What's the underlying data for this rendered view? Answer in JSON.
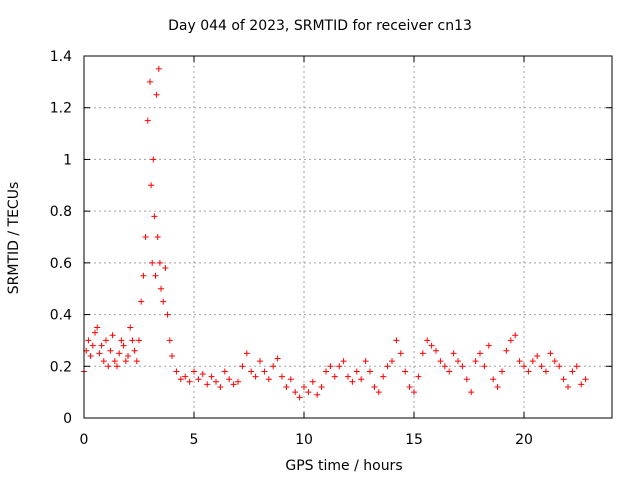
{
  "chart_data": {
    "type": "scatter",
    "title": "Day 044 of 2023, SRMTID for receiver cn13",
    "xlabel": "GPS time / hours",
    "ylabel": "SRMTID / TECUs",
    "xlim": [
      0,
      24
    ],
    "ylim": [
      0,
      1.4
    ],
    "xticks": [
      "0",
      "5",
      "10",
      "15",
      "20"
    ],
    "yticks": [
      "0",
      "0.2",
      "0.4",
      "0.6",
      "0.8",
      "1",
      "1.2",
      "1.4"
    ],
    "grid": true,
    "marker": "+",
    "color": "#ff0000",
    "series": [
      {
        "name": "SRMTID",
        "x": [
          0.0,
          0.1,
          0.2,
          0.3,
          0.4,
          0.5,
          0.6,
          0.7,
          0.8,
          0.9,
          1.0,
          1.1,
          1.2,
          1.3,
          1.4,
          1.5,
          1.6,
          1.7,
          1.8,
          1.9,
          2.0,
          2.1,
          2.2,
          2.3,
          2.4,
          2.5,
          2.6,
          2.7,
          2.8,
          2.9,
          3.0,
          3.05,
          3.1,
          3.15,
          3.2,
          3.25,
          3.3,
          3.35,
          3.4,
          3.45,
          3.5,
          3.6,
          3.7,
          3.8,
          3.9,
          4.0,
          4.2,
          4.4,
          4.6,
          4.8,
          5.0,
          5.2,
          5.4,
          5.6,
          5.8,
          6.0,
          6.2,
          6.4,
          6.6,
          6.8,
          7.0,
          7.2,
          7.4,
          7.6,
          7.8,
          8.0,
          8.2,
          8.4,
          8.6,
          8.8,
          9.0,
          9.2,
          9.4,
          9.6,
          9.8,
          10.0,
          10.2,
          10.4,
          10.6,
          10.8,
          11.0,
          11.2,
          11.4,
          11.6,
          11.8,
          12.0,
          12.2,
          12.4,
          12.6,
          12.8,
          13.0,
          13.2,
          13.4,
          13.6,
          13.8,
          14.0,
          14.2,
          14.4,
          14.6,
          14.8,
          15.0,
          15.2,
          15.4,
          15.6,
          15.8,
          16.0,
          16.2,
          16.4,
          16.6,
          16.8,
          17.0,
          17.2,
          17.4,
          17.6,
          17.8,
          18.0,
          18.2,
          18.4,
          18.6,
          18.8,
          19.0,
          19.2,
          19.4,
          19.6,
          19.8,
          20.0,
          20.2,
          20.4,
          20.6,
          20.8,
          21.0,
          21.2,
          21.4,
          21.6,
          21.8,
          22.0,
          22.2,
          22.4,
          22.6,
          22.8
        ],
        "y": [
          0.18,
          0.26,
          0.3,
          0.24,
          0.28,
          0.33,
          0.35,
          0.25,
          0.28,
          0.22,
          0.3,
          0.2,
          0.26,
          0.32,
          0.22,
          0.2,
          0.25,
          0.3,
          0.28,
          0.22,
          0.24,
          0.35,
          0.3,
          0.26,
          0.22,
          0.3,
          0.45,
          0.55,
          0.7,
          1.15,
          1.3,
          0.9,
          0.6,
          1.0,
          0.78,
          0.55,
          1.25,
          0.7,
          1.35,
          0.6,
          0.5,
          0.45,
          0.58,
          0.4,
          0.3,
          0.24,
          0.18,
          0.15,
          0.16,
          0.14,
          0.18,
          0.15,
          0.17,
          0.13,
          0.16,
          0.14,
          0.12,
          0.18,
          0.15,
          0.13,
          0.14,
          0.2,
          0.25,
          0.18,
          0.16,
          0.22,
          0.18,
          0.15,
          0.2,
          0.23,
          0.16,
          0.12,
          0.15,
          0.1,
          0.08,
          0.12,
          0.1,
          0.14,
          0.09,
          0.12,
          0.18,
          0.2,
          0.16,
          0.2,
          0.22,
          0.16,
          0.14,
          0.18,
          0.15,
          0.22,
          0.18,
          0.12,
          0.1,
          0.16,
          0.2,
          0.22,
          0.3,
          0.25,
          0.18,
          0.12,
          0.1,
          0.16,
          0.25,
          0.3,
          0.28,
          0.26,
          0.22,
          0.2,
          0.18,
          0.25,
          0.22,
          0.2,
          0.15,
          0.1,
          0.22,
          0.25,
          0.2,
          0.28,
          0.15,
          0.12,
          0.18,
          0.26,
          0.3,
          0.32,
          0.22,
          0.2,
          0.18,
          0.22,
          0.24,
          0.2,
          0.18,
          0.25,
          0.22,
          0.2,
          0.15,
          0.12,
          0.18,
          0.2,
          0.13,
          0.15
        ]
      }
    ]
  }
}
